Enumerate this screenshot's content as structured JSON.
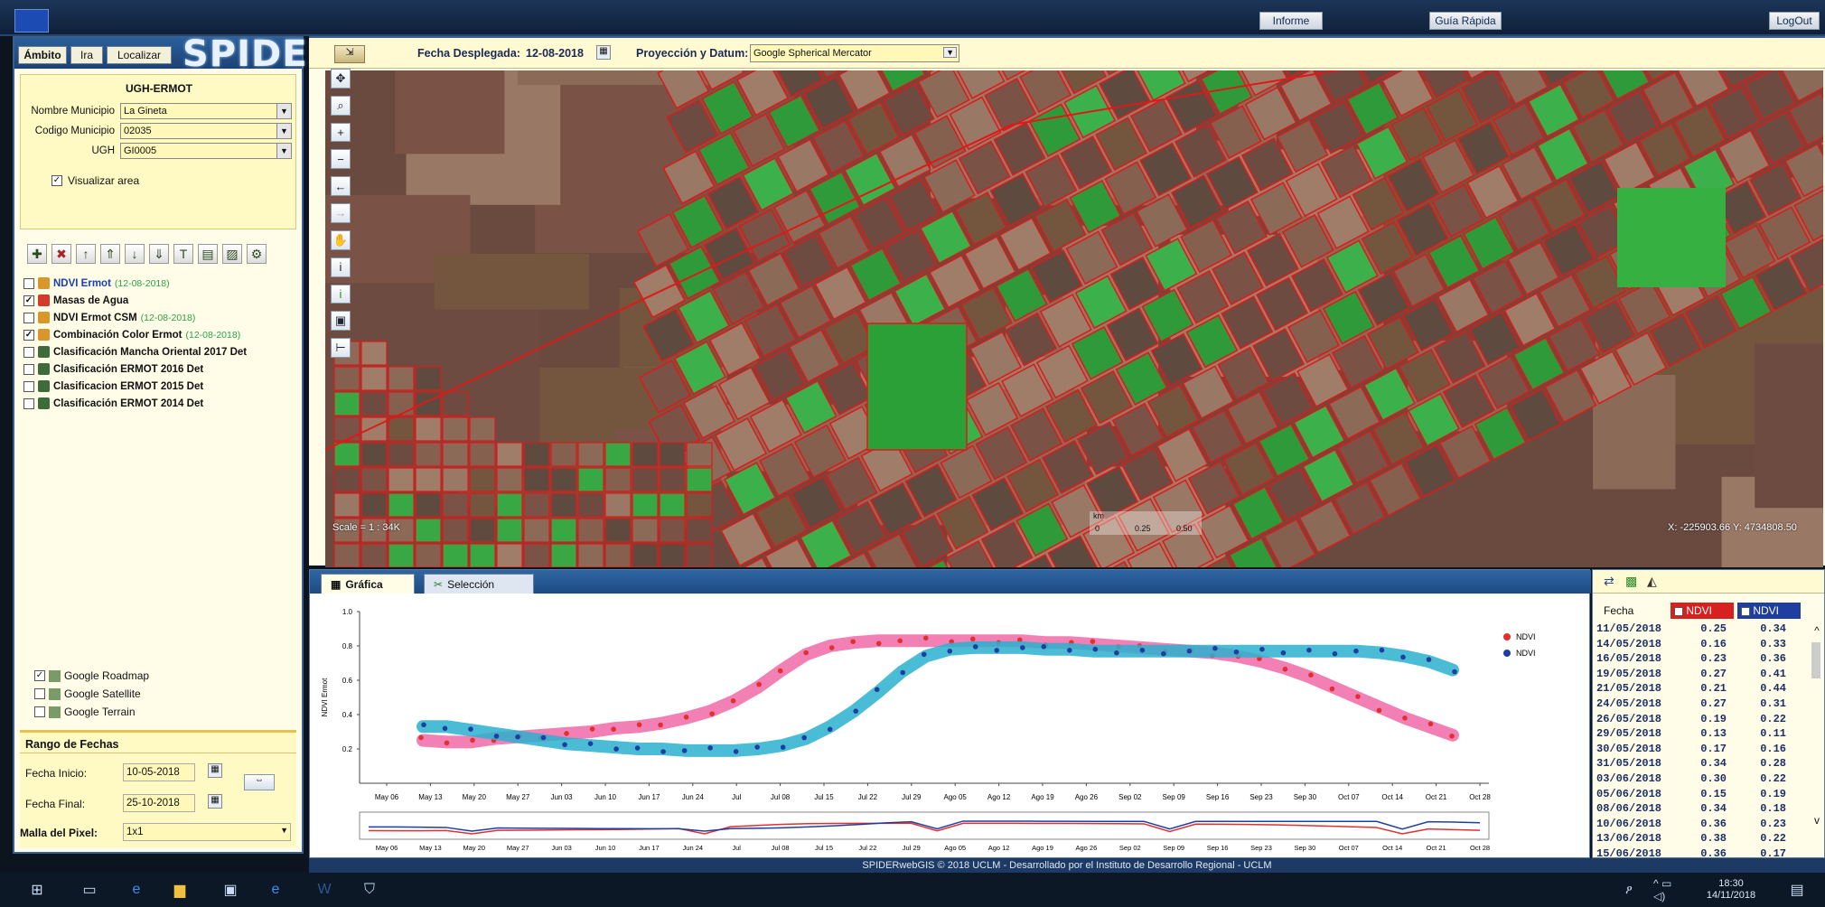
{
  "topbar": {
    "informe": "Informe",
    "guia": "Guía Rápida",
    "logout": "LogOut"
  },
  "left": {
    "tabs": [
      "Ámbito",
      "Ira",
      "Localizar"
    ],
    "logo": "SPIDER",
    "ambito_title": "UGH-ERMOT",
    "fields": [
      {
        "label": "Nombre Municipio",
        "value": "La Gineta"
      },
      {
        "label": "Codigo Municipio",
        "value": "02035"
      },
      {
        "label": "UGH",
        "value": "GI0005"
      }
    ],
    "visualizar": "Visualizar area",
    "layers": [
      {
        "label": "NDVI Ermot",
        "date": "(12-08-2018)",
        "checked": false,
        "color": "#d9962b"
      },
      {
        "label": "Masas de Agua",
        "date": "",
        "checked": true,
        "color": "#d43a2a"
      },
      {
        "label": "NDVI Ermot CSM",
        "date": "(12-08-2018)",
        "checked": false,
        "color": "#d9962b"
      },
      {
        "label": "Combinación Color Ermot",
        "date": "(12-08-2018)",
        "checked": true,
        "color": "#d9962b"
      },
      {
        "label": "Clasificación Mancha Oriental 2017 Det",
        "date": "",
        "checked": false,
        "color": "#3d6b3a"
      },
      {
        "label": "Clasificación ERMOT 2016 Det",
        "date": "",
        "checked": false,
        "color": "#3d6b3a"
      },
      {
        "label": "Clasificacion ERMOT 2015 Det",
        "date": "",
        "checked": false,
        "color": "#3d6b3a"
      },
      {
        "label": "Clasificación ERMOT 2014 Det",
        "date": "",
        "checked": false,
        "color": "#3d6b3a"
      }
    ],
    "basemaps": [
      {
        "label": "Google Roadmap",
        "checked": true
      },
      {
        "label": "Google Satellite",
        "checked": false
      },
      {
        "label": "Google Terrain",
        "checked": false
      }
    ],
    "rango": {
      "title": "Rango de Fechas",
      "inicio_label": "Fecha Inicio:",
      "inicio": "10-05-2018",
      "final_label": "Fecha Final:",
      "final": "25-10-2018",
      "malla_label": "Malla del Pixel:",
      "malla": "1x1"
    }
  },
  "map": {
    "fecha_label": "Fecha Desplegada:",
    "fecha": "12-08-2018",
    "proy_label": "Proyección y Datum:",
    "proy": "Google Spherical Mercator",
    "scale": "Scale = 1 : 34K",
    "km": "km",
    "scalebar": [
      "0",
      "0.25",
      "0.50"
    ],
    "coords": "X: -225903.66 Y: 4734808.50"
  },
  "chart_tabs": {
    "grafica": "Gráfica",
    "seleccion": "Selección"
  },
  "chart_data": {
    "type": "scatter",
    "title": "",
    "ylabel": "NDVI Ermot",
    "ylim": [
      0,
      1
    ],
    "yticks": [
      "0.2",
      "0.4",
      "0.6",
      "0.8",
      "1.0"
    ],
    "xticks": [
      "May 06",
      "May 13",
      "May 20",
      "May 27",
      "Jun 03",
      "Jun 10",
      "Jun 17",
      "Jun 24",
      "Jul",
      "Jul 08",
      "Jul 15",
      "Jul 22",
      "Jul 29",
      "Ago 05",
      "Ago 12",
      "Ago 19",
      "Ago 26",
      "Sep 02",
      "Sep 09",
      "Sep 16",
      "Sep 23",
      "Sep 30",
      "Oct 07",
      "Oct 14",
      "Oct 21",
      "Oct 28"
    ],
    "legend": [
      "NDVI",
      "NDVI"
    ],
    "series": [
      {
        "name": "NDVI",
        "color": "#e03030",
        "band": "#f06aa8",
        "values": [
          0.25,
          0.24,
          0.24,
          0.26,
          0.27,
          0.28,
          0.29,
          0.3,
          0.32,
          0.33,
          0.35,
          0.38,
          0.42,
          0.48,
          0.56,
          0.66,
          0.75,
          0.8,
          0.82,
          0.83,
          0.83,
          0.83,
          0.83,
          0.83,
          0.83,
          0.83,
          0.82,
          0.82,
          0.81,
          0.8,
          0.79,
          0.78,
          0.77,
          0.76,
          0.74,
          0.71,
          0.67,
          0.62,
          0.56,
          0.5,
          0.44,
          0.38,
          0.33,
          0.28
        ]
      },
      {
        "name": "NDVI",
        "color": "#1f3fa0",
        "band": "#2ab0cf",
        "values": [
          0.33,
          0.33,
          0.31,
          0.29,
          0.27,
          0.25,
          0.23,
          0.22,
          0.21,
          0.2,
          0.2,
          0.19,
          0.19,
          0.19,
          0.2,
          0.22,
          0.26,
          0.33,
          0.42,
          0.53,
          0.65,
          0.74,
          0.78,
          0.79,
          0.79,
          0.79,
          0.78,
          0.78,
          0.77,
          0.77,
          0.77,
          0.77,
          0.77,
          0.77,
          0.77,
          0.77,
          0.77,
          0.77,
          0.77,
          0.77,
          0.76,
          0.74,
          0.71,
          0.66
        ]
      }
    ],
    "sub_xticks": [
      "May 06",
      "May 13",
      "May 20",
      "May 27",
      "Jun 03",
      "Jun 10",
      "Jun 17",
      "Jun 24",
      "Jul",
      "Jul 08",
      "Jul 15",
      "Jul 22",
      "Jul 29",
      "Ago 05",
      "Ago 12",
      "Ago 19",
      "Ago 26",
      "Sep 02",
      "Sep 09",
      "Sep 16",
      "Sep 23",
      "Sep 30",
      "Oct 07",
      "Oct 14",
      "Oct 21",
      "Oct 28"
    ]
  },
  "table": {
    "headers": [
      "Fecha",
      "NDVI",
      "NDVI"
    ],
    "rows": [
      [
        "11/05/2018",
        "0.25",
        "0.34"
      ],
      [
        "14/05/2018",
        "0.16",
        "0.33"
      ],
      [
        "16/05/2018",
        "0.23",
        "0.36"
      ],
      [
        "19/05/2018",
        "0.27",
        "0.41"
      ],
      [
        "21/05/2018",
        "0.21",
        "0.44"
      ],
      [
        "24/05/2018",
        "0.27",
        "0.31"
      ],
      [
        "26/05/2018",
        "0.19",
        "0.22"
      ],
      [
        "29/05/2018",
        "0.13",
        "0.11"
      ],
      [
        "30/05/2018",
        "0.17",
        "0.16"
      ],
      [
        "31/05/2018",
        "0.34",
        "0.28"
      ],
      [
        "03/06/2018",
        "0.30",
        "0.22"
      ],
      [
        "05/06/2018",
        "0.15",
        "0.19"
      ],
      [
        "08/06/2018",
        "0.34",
        "0.18"
      ],
      [
        "10/06/2018",
        "0.36",
        "0.23"
      ],
      [
        "13/06/2018",
        "0.38",
        "0.22"
      ],
      [
        "15/06/2018",
        "0.36",
        "0.17"
      ]
    ]
  },
  "status": "SPIDERwebGIS © 2018 UCLM - Desarrollado por el Instituto de Desarrollo Regional - UCLM",
  "taskbar": {
    "time": "18:30",
    "date": "14/11/2018"
  },
  "colors": {
    "accent": "#1d4a82",
    "panel": "#fffde8",
    "parcel": "#e01818"
  }
}
